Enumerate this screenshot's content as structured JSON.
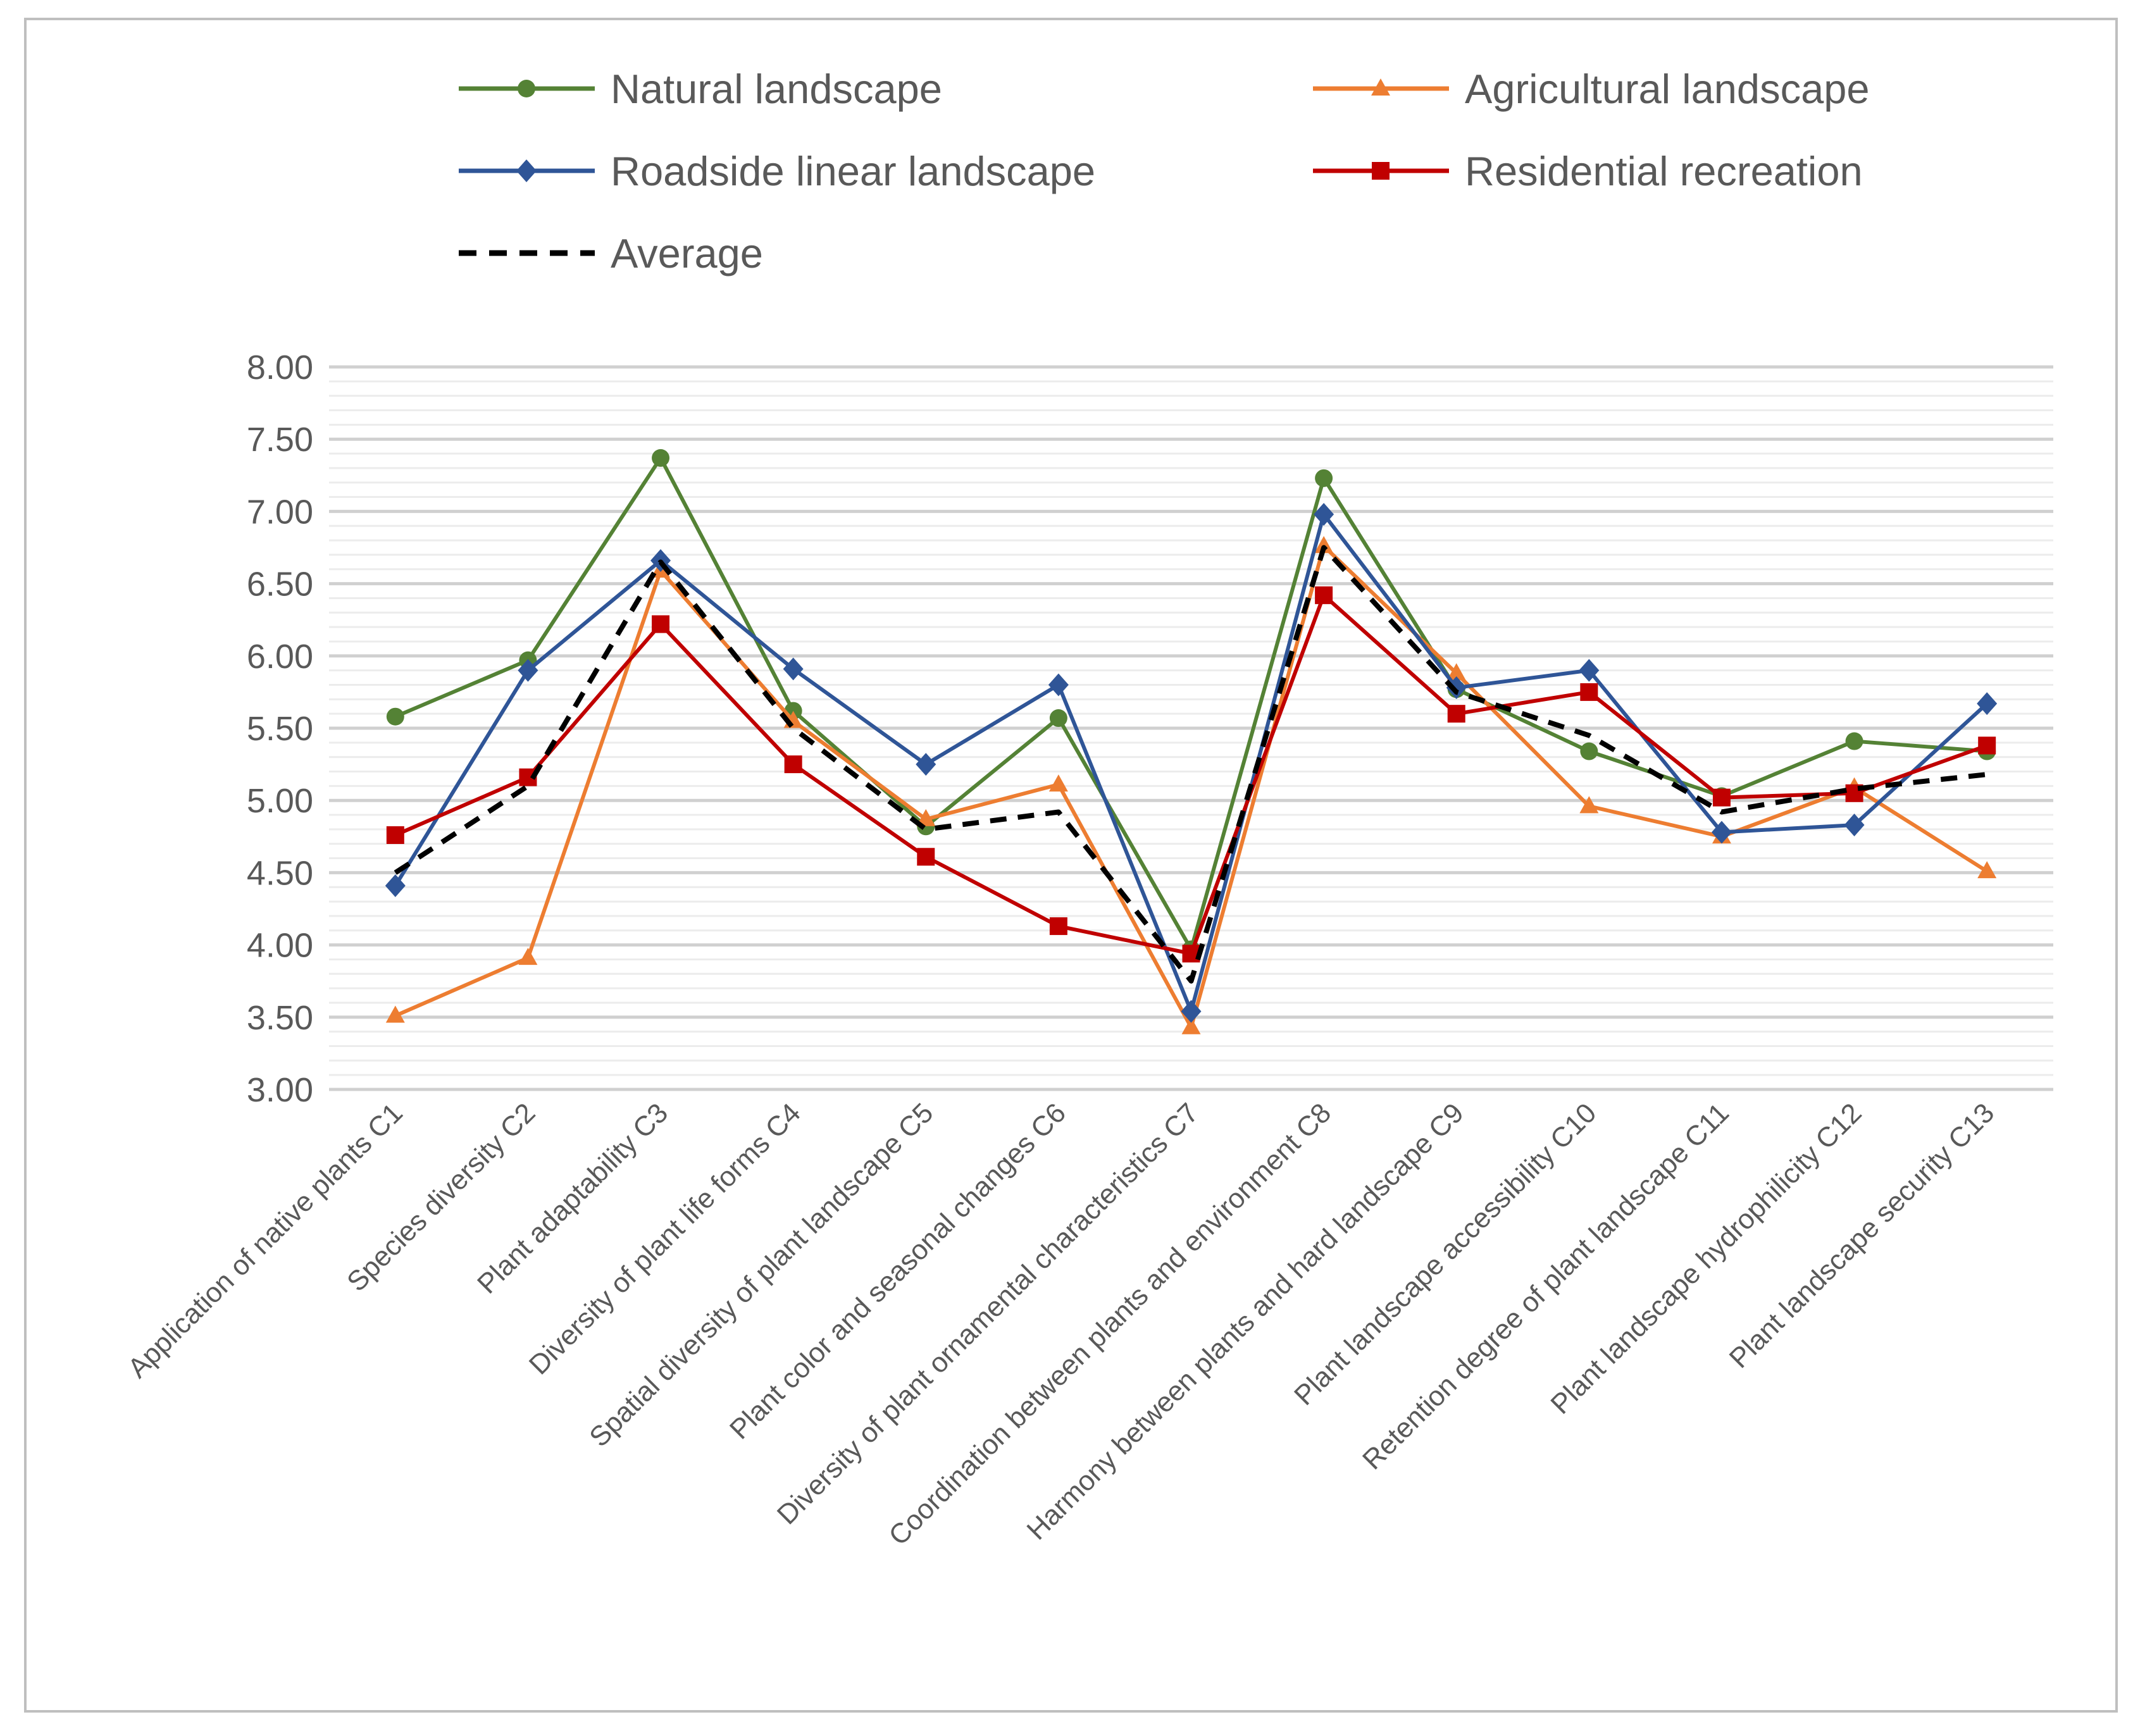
{
  "chart_data": {
    "type": "line",
    "title": "",
    "xlabel": "",
    "ylabel": "",
    "ylim": [
      3.0,
      8.0
    ],
    "ytick_step": 0.5,
    "ytick_labels": [
      "3.00",
      "3.50",
      "4.00",
      "4.50",
      "5.00",
      "5.50",
      "6.00",
      "6.50",
      "7.00",
      "7.50",
      "8.00"
    ],
    "minor_grid_step": 0.1,
    "grid": true,
    "legend_position": "top",
    "categories": [
      "Application of native plants C1",
      "Species diversity C2",
      "Plant adaptability C3",
      "Diversity of plant life forms C4",
      "Spatial diversity of plant landscape C5",
      "Plant color and seasonal changes C6",
      "Diversity of plant ornamental characteristics C7",
      "Coordination between plants and environment C8",
      "Harmony between plants and hard landscape C9",
      "Plant landscape accessibility C10",
      "Retention degree of plant landscape C11",
      "Plant landscape hydrophilicity C12",
      "Plant landscape security C13"
    ],
    "series": [
      {
        "name": "Natural landscape",
        "color": "#548235",
        "marker": "circle",
        "dashed": false,
        "values": [
          5.58,
          5.97,
          7.37,
          5.62,
          4.82,
          5.57,
          3.97,
          7.23,
          5.77,
          5.34,
          5.03,
          5.41,
          5.34
        ]
      },
      {
        "name": "Agricultural landscape",
        "color": "#ED7D31",
        "marker": "triangle",
        "dashed": false,
        "values": [
          3.51,
          3.91,
          6.59,
          5.55,
          4.87,
          5.11,
          3.43,
          6.76,
          5.88,
          4.96,
          4.75,
          5.09,
          4.51
        ]
      },
      {
        "name": "Roadside linear landscape",
        "color": "#2F5597",
        "marker": "diamond",
        "dashed": false,
        "values": [
          4.41,
          5.9,
          6.66,
          5.91,
          5.25,
          5.8,
          3.54,
          6.98,
          5.78,
          5.9,
          4.78,
          4.83,
          5.67
        ]
      },
      {
        "name": "Residential recreation",
        "color": "#C00000",
        "marker": "square",
        "dashed": false,
        "values": [
          4.76,
          5.16,
          6.22,
          5.25,
          4.61,
          4.13,
          3.94,
          6.42,
          5.6,
          5.75,
          5.02,
          5.05,
          5.38
        ]
      },
      {
        "name": "Average",
        "color": "#000000",
        "marker": "none",
        "dashed": true,
        "values": [
          4.5,
          5.1,
          6.65,
          5.5,
          4.8,
          4.92,
          3.75,
          6.75,
          5.75,
          5.45,
          4.92,
          5.08,
          5.18
        ]
      }
    ]
  }
}
